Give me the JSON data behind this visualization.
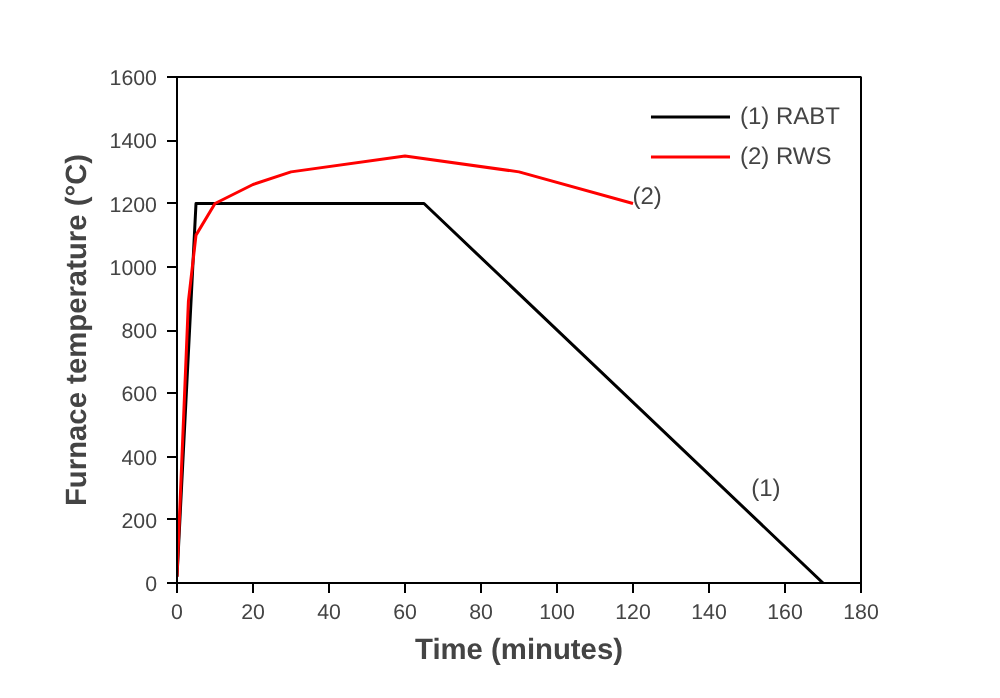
{
  "chart_data": {
    "type": "line",
    "xlabel": "Time (minutes)",
    "ylabel": "Furnace temperature (°C)",
    "xlim": [
      0,
      180
    ],
    "ylim": [
      0,
      1600
    ],
    "xticks": [
      0,
      20,
      40,
      60,
      80,
      100,
      120,
      140,
      160,
      180
    ],
    "yticks": [
      0,
      200,
      400,
      600,
      800,
      1000,
      1200,
      1400,
      1600
    ],
    "series": [
      {
        "name": "(1) RABT",
        "color": "#000000",
        "x": [
          0,
          5,
          65,
          170
        ],
        "values": [
          20,
          1200,
          1200,
          0
        ]
      },
      {
        "name": "(2) RWS",
        "color": "#ff0000",
        "x": [
          0,
          3,
          5,
          10,
          20,
          30,
          60,
          90,
          120
        ],
        "values": [
          20,
          890,
          1100,
          1200,
          1260,
          1300,
          1350,
          1300,
          1200
        ]
      }
    ],
    "annotations": [
      "(1)",
      "(2)"
    ],
    "legend": "top right",
    "grid": false,
    "marker": "none",
    "line_style": "solid"
  }
}
